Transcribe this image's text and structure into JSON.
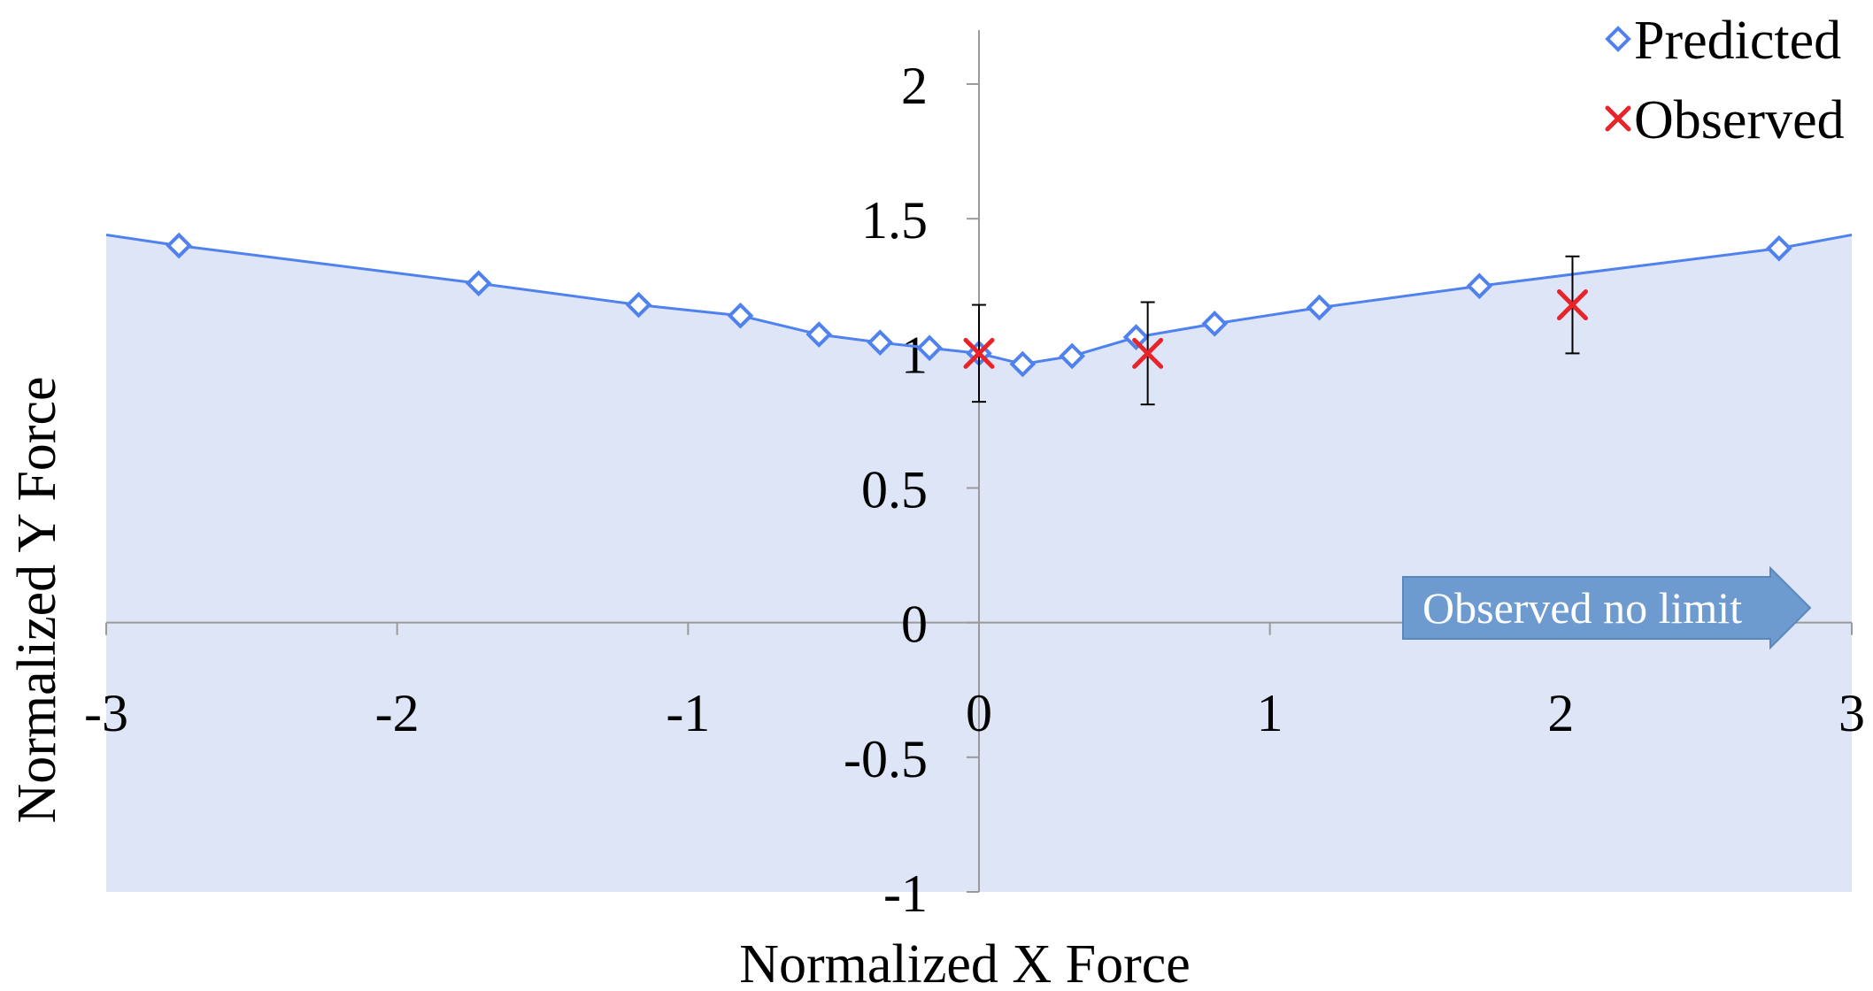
{
  "chart_data": {
    "type": "scatter",
    "xlabel": "Normalized X Force",
    "ylabel": "Normalized Y Force",
    "xlim": [
      -3,
      3
    ],
    "ylim": [
      -1,
      2.2
    ],
    "x_ticks": [
      "-3",
      "-2",
      "-1",
      "0",
      "1",
      "2",
      "3"
    ],
    "y_ticks": [
      "-1",
      "-0.5",
      "0",
      "0.5",
      "1",
      "1.5",
      "2"
    ],
    "x_tick_values": [
      -3,
      -2,
      -1,
      0,
      1,
      2,
      3
    ],
    "y_tick_values": [
      -1,
      -0.5,
      0,
      0.5,
      1,
      1.5,
      2
    ],
    "grid": false,
    "legend_position": "top-right",
    "annotation": "Observed no limit",
    "fill_region": {
      "description_color": "#dde5f7",
      "boundary": "predicted"
    },
    "series": [
      {
        "name": "Predicted",
        "marker": "diamond",
        "color": "#4f81ef",
        "line": true,
        "x": [
          -3,
          -2.75,
          -1.72,
          -1.17,
          -0.82,
          -0.55,
          -0.34,
          -0.17,
          0,
          0.15,
          0.32,
          0.54,
          0.81,
          1.17,
          1.72,
          2.75,
          3
        ],
        "y": [
          1.44,
          1.4,
          1.26,
          1.18,
          1.14,
          1.07,
          1.04,
          1.02,
          1.0,
          0.96,
          0.99,
          1.06,
          1.11,
          1.17,
          1.25,
          1.39,
          1.44
        ]
      },
      {
        "name": "Observed",
        "marker": "x",
        "color": "#e8232a",
        "line": false,
        "x": [
          0,
          0.58,
          2.04
        ],
        "y": [
          1.0,
          1.0,
          1.18
        ],
        "error": [
          0.18,
          0.19,
          0.18
        ]
      }
    ]
  }
}
